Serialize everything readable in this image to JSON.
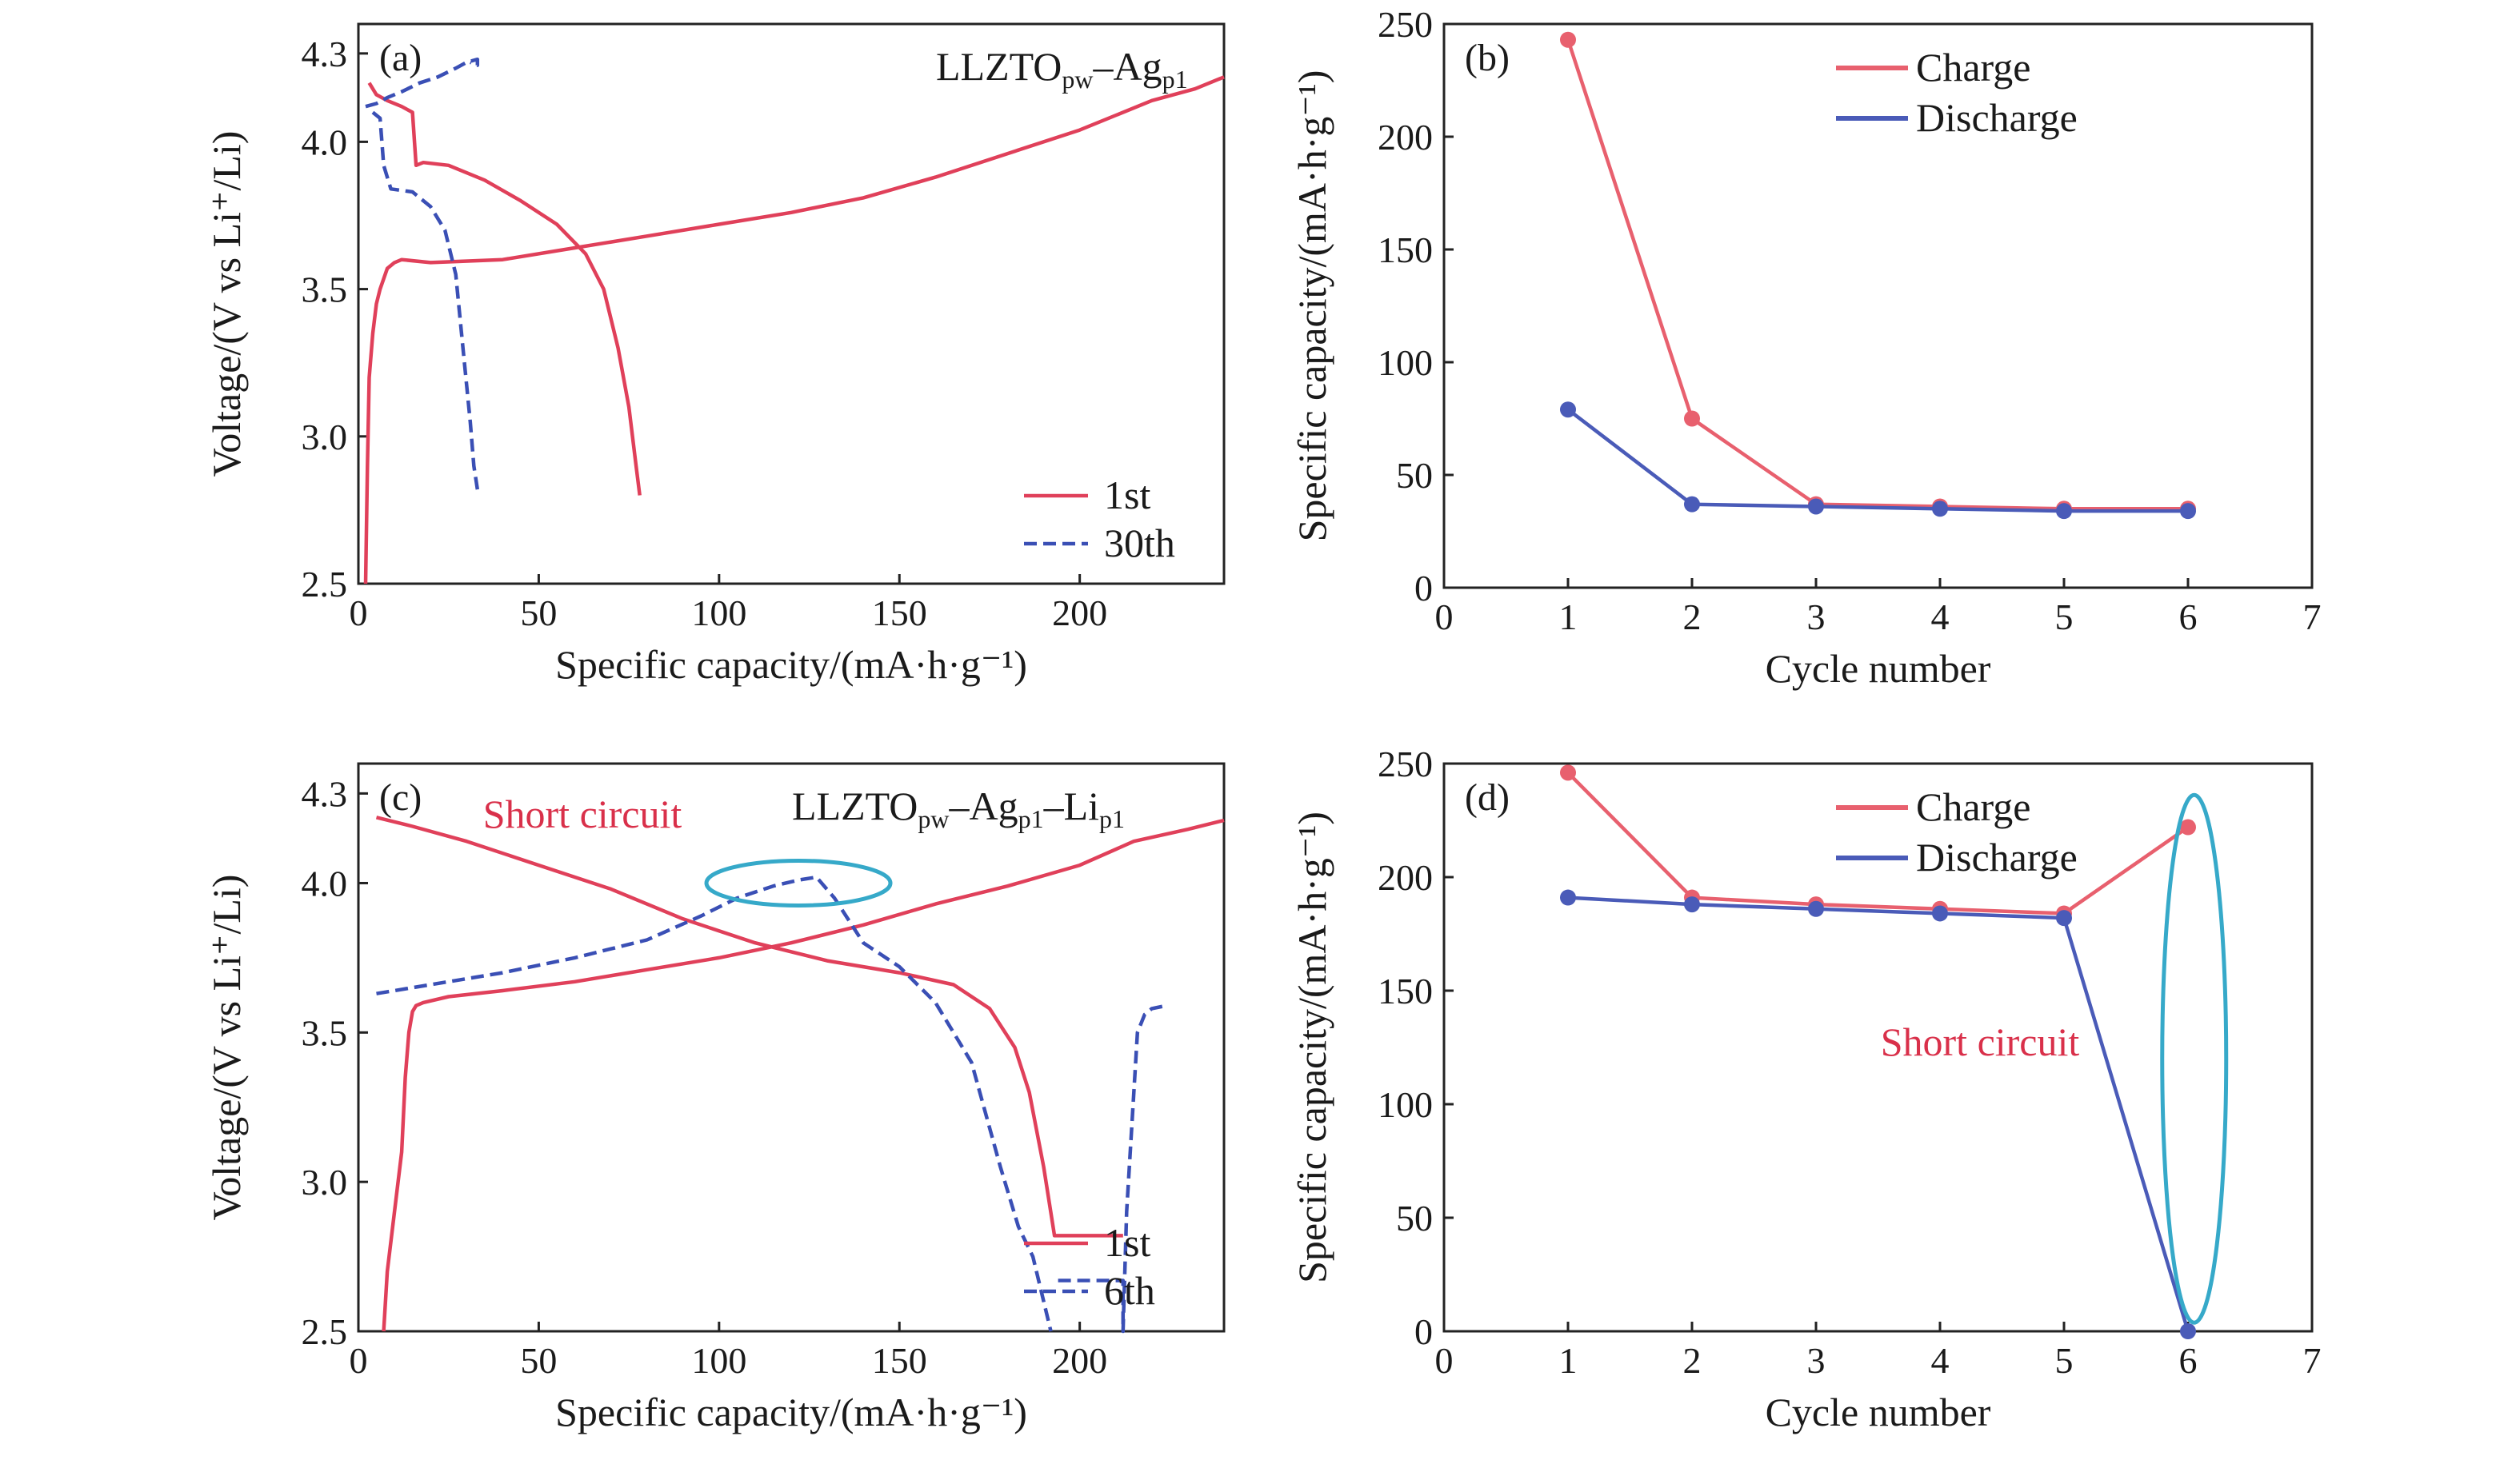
{
  "chart_data": [
    {
      "panel": "(a)",
      "type": "line",
      "annotation": "LLZTO",
      "annotation_sub1": "pw",
      "annotation_mid": "–Ag",
      "annotation_sub2": "p1",
      "xlabel": "Specific capacity/(mA·h·g⁻¹)",
      "ylabel": "Voltage/(V vs Li⁺/Li)",
      "xlim": [
        0,
        240
      ],
      "ylim": [
        2.5,
        4.4
      ],
      "xticks": [
        "0",
        "50",
        "100",
        "150",
        "200"
      ],
      "yticks": [
        "2.5",
        "3.0",
        "3.5",
        "4.0",
        "4.3"
      ],
      "legend": [
        "1st",
        "30th"
      ],
      "legend_position": "bottom-right",
      "series": [
        {
          "name": "1st",
          "style": "solid",
          "color": "#e0405a",
          "x": [
            2,
            2.5,
            3,
            4,
            5,
            6,
            8,
            10,
            12,
            20,
            40,
            60,
            80,
            100,
            120,
            140,
            160,
            180,
            200,
            220,
            232,
            240
          ],
          "y": [
            2.5,
            2.9,
            3.2,
            3.35,
            3.45,
            3.5,
            3.57,
            3.59,
            3.6,
            3.59,
            3.6,
            3.64,
            3.68,
            3.72,
            3.76,
            3.81,
            3.88,
            3.96,
            4.04,
            4.14,
            4.18,
            4.22
          ]
        },
        {
          "name": "1st",
          "style": "solid",
          "color": "#e0405a",
          "x": [
            3,
            5,
            8,
            12,
            15,
            16,
            18,
            25,
            35,
            45,
            55,
            63,
            68,
            72,
            75,
            77,
            78
          ],
          "y": [
            4.2,
            4.16,
            4.14,
            4.12,
            4.1,
            3.92,
            3.93,
            3.92,
            3.87,
            3.8,
            3.72,
            3.62,
            3.5,
            3.3,
            3.1,
            2.9,
            2.8
          ]
        },
        {
          "name": "30th",
          "style": "dashed",
          "color": "#3a4fb5",
          "x": [
            2,
            5,
            8,
            12,
            17,
            22,
            27,
            30,
            33,
            33,
            31
          ],
          "y": [
            4.12,
            4.13,
            4.15,
            4.17,
            4.2,
            4.22,
            4.25,
            4.27,
            4.28,
            4.26,
            4.27
          ]
        },
        {
          "name": "30th",
          "style": "dashed",
          "color": "#3a4fb5",
          "x": [
            4,
            6,
            7,
            8,
            9,
            15,
            20,
            24,
            27,
            29,
            31,
            32,
            33
          ],
          "y": [
            4.1,
            4.08,
            3.92,
            3.88,
            3.84,
            3.83,
            3.78,
            3.7,
            3.55,
            3.3,
            3.05,
            2.9,
            2.82
          ]
        }
      ]
    },
    {
      "panel": "(b)",
      "type": "line",
      "xlabel": "Cycle number",
      "ylabel": "Specific capacity/(mA·h·g⁻¹)",
      "xlim": [
        0,
        7
      ],
      "ylim": [
        0,
        250
      ],
      "xticks": [
        "0",
        "1",
        "2",
        "3",
        "4",
        "5",
        "6",
        "7"
      ],
      "yticks": [
        "0",
        "50",
        "100",
        "150",
        "200",
        "250"
      ],
      "legend_position": "top-center",
      "x": [
        1,
        2,
        3,
        4,
        5,
        6
      ],
      "series": [
        {
          "name": "Charge",
          "color": "#e8606e",
          "values": [
            243,
            75,
            37,
            36,
            35,
            35
          ]
        },
        {
          "name": "Discharge",
          "color": "#4a5bb8",
          "values": [
            79,
            37,
            36,
            35,
            34,
            34
          ]
        }
      ]
    },
    {
      "panel": "(c)",
      "type": "line",
      "annotation": "LLZTO",
      "annotation_sub1": "pw",
      "annotation_mid": "–Ag",
      "annotation_sub2": "p1",
      "annotation_mid2": "–Li",
      "annotation_sub3": "p1",
      "short_circuit_label": "Short circuit",
      "xlabel": "Specific capacity/(mA·h·g⁻¹)",
      "ylabel": "Voltage/(V vs Li⁺/Li)",
      "xlim": [
        0,
        240
      ],
      "ylim": [
        2.5,
        4.4
      ],
      "xticks": [
        "0",
        "50",
        "100",
        "150",
        "200"
      ],
      "yticks": [
        "2.5",
        "3.0",
        "3.5",
        "4.0",
        "4.3"
      ],
      "legend": [
        "1st",
        "6th"
      ],
      "legend_position": "bottom-right",
      "series": [
        {
          "name": "1st",
          "style": "solid",
          "color": "#e0405a",
          "x": [
            7,
            8,
            10,
            12,
            13,
            14,
            15,
            16,
            18,
            25,
            40,
            60,
            80,
            100,
            120,
            140,
            160,
            180,
            200,
            215,
            230,
            240
          ],
          "y": [
            2.5,
            2.7,
            2.9,
            3.1,
            3.35,
            3.5,
            3.57,
            3.59,
            3.6,
            3.62,
            3.64,
            3.67,
            3.71,
            3.75,
            3.8,
            3.86,
            3.93,
            3.99,
            4.06,
            4.14,
            4.18,
            4.21
          ]
        },
        {
          "name": "1st",
          "style": "solid",
          "color": "#e0405a",
          "x": [
            5,
            15,
            30,
            50,
            70,
            90,
            110,
            130,
            150,
            165,
            175,
            182,
            186,
            190,
            193,
            193,
            212
          ],
          "y": [
            4.22,
            4.19,
            4.14,
            4.06,
            3.98,
            3.88,
            3.8,
            3.74,
            3.7,
            3.66,
            3.58,
            3.45,
            3.3,
            3.05,
            2.82,
            2.82,
            2.82
          ]
        },
        {
          "name": "6th",
          "style": "dashed",
          "color": "#3a4fb5",
          "x": [
            5,
            20,
            40,
            60,
            80,
            95,
            105,
            115,
            122,
            127,
            132,
            140,
            150,
            160,
            170,
            178,
            183,
            187,
            190,
            192
          ],
          "y": [
            3.63,
            3.66,
            3.7,
            3.75,
            3.81,
            3.89,
            3.95,
            3.99,
            4.01,
            4.02,
            3.95,
            3.8,
            3.72,
            3.6,
            3.4,
            3.05,
            2.85,
            2.75,
            2.6,
            2.5
          ]
        },
        {
          "name": "6th",
          "style": "dashed",
          "color": "#3a4fb5",
          "x": [
            194,
            212,
            212,
            213,
            215,
            216,
            218,
            220,
            224
          ],
          "y": [
            2.67,
            2.67,
            2.5,
            2.9,
            3.3,
            3.5,
            3.56,
            3.58,
            3.59
          ]
        }
      ],
      "highlight_ellipse": {
        "cx": 122,
        "cy": 4.0
      }
    },
    {
      "panel": "(d)",
      "type": "line",
      "short_circuit_label": "Short circuit",
      "xlabel": "Cycle number",
      "ylabel": "Specific capacity/(mA·h·g⁻¹)",
      "xlim": [
        0,
        7
      ],
      "ylim": [
        0,
        250
      ],
      "xticks": [
        "0",
        "1",
        "2",
        "3",
        "4",
        "5",
        "6",
        "7"
      ],
      "yticks": [
        "0",
        "50",
        "100",
        "150",
        "200",
        "250"
      ],
      "legend_position": "top-center",
      "x": [
        1,
        2,
        3,
        4,
        5,
        6
      ],
      "series": [
        {
          "name": "Charge",
          "color": "#e8606e",
          "values": [
            246,
            191,
            188,
            186,
            184,
            222
          ]
        },
        {
          "name": "Discharge",
          "color": "#4a5bb8",
          "values": [
            191,
            188,
            186,
            184,
            182,
            0
          ]
        }
      ],
      "highlight_ellipse": {
        "cx": 6.05,
        "cy": 120
      }
    }
  ]
}
